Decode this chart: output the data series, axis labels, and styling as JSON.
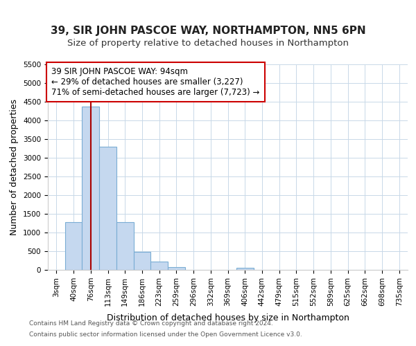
{
  "title": "39, SIR JOHN PASCOE WAY, NORTHAMPTON, NN5 6PN",
  "subtitle": "Size of property relative to detached houses in Northampton",
  "xlabel": "Distribution of detached houses by size in Northampton",
  "ylabel": "Number of detached properties",
  "annotation_line1": "39 SIR JOHN PASCOE WAY: 94sqm",
  "annotation_line2": "← 29% of detached houses are smaller (3,227)",
  "annotation_line3": "71% of semi-detached houses are larger (7,723) →",
  "footer_line1": "Contains HM Land Registry data © Crown copyright and database right 2024.",
  "footer_line2": "Contains public sector information licensed under the Open Government Licence v3.0.",
  "bin_labels": [
    "3sqm",
    "40sqm",
    "76sqm",
    "113sqm",
    "149sqm",
    "186sqm",
    "223sqm",
    "259sqm",
    "296sqm",
    "332sqm",
    "369sqm",
    "406sqm",
    "442sqm",
    "479sqm",
    "515sqm",
    "552sqm",
    "589sqm",
    "625sqm",
    "662sqm",
    "698sqm",
    "735sqm"
  ],
  "bar_heights": [
    0,
    1270,
    4370,
    3300,
    1270,
    480,
    230,
    80,
    0,
    0,
    0,
    60,
    0,
    0,
    0,
    0,
    0,
    0,
    0,
    0,
    0
  ],
  "bar_color": "#c5d8ef",
  "bar_edge_color": "#7aadd4",
  "vline_x": 2.0,
  "vline_color": "#aa0000",
  "ylim": [
    0,
    5500
  ],
  "yticks": [
    0,
    500,
    1000,
    1500,
    2000,
    2500,
    3000,
    3500,
    4000,
    4500,
    5000,
    5500
  ],
  "annotation_box_color": "#ffffff",
  "annotation_box_edge": "#cc0000",
  "background_color": "#ffffff",
  "grid_color": "#c8d8e8",
  "title_fontsize": 11,
  "subtitle_fontsize": 9.5,
  "axis_label_fontsize": 9,
  "tick_fontsize": 7.5,
  "annotation_fontsize": 8.5,
  "footer_fontsize": 6.5
}
